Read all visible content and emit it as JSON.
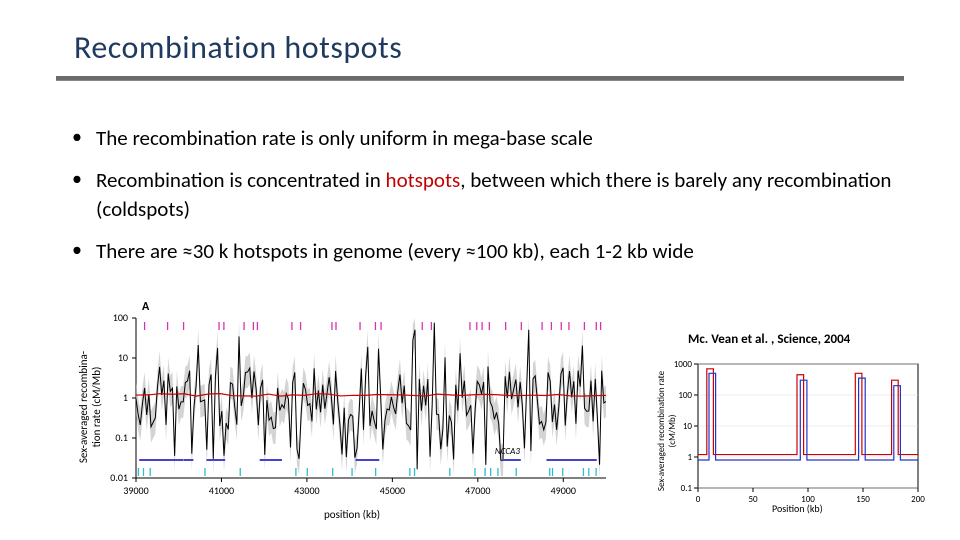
{
  "title": "Recombination hotspots",
  "bullets": {
    "b1": "The recombination rate is only uniform in mega-base scale",
    "b2_pre": "Recombination is concentrated in ",
    "b2_hot": "hotspots",
    "b2_post": ", between which there is barely any recombination (coldspots)",
    "b3": "There are ≈30 k hotspots in genome (every ≈100 kb), each 1-2 kb wide"
  },
  "citation": "Mc. Vean et al. , Science, 2004",
  "chart1": {
    "type": "line-log",
    "panel_label": "A",
    "ylabel": "Sex-averaged recombina-\ntion rate (cM/Mb)",
    "xlabel": "position (kb)",
    "xlim": [
      39000,
      50000
    ],
    "ylim_log": [
      0.01,
      100
    ],
    "yticks": [
      0.01,
      0.1,
      1,
      10,
      100
    ],
    "ytick_labels": [
      "0.01",
      "0.1",
      "1",
      "10",
      "100"
    ],
    "xticks": [
      39000,
      41000,
      43000,
      45000,
      47000,
      49000
    ],
    "series_red_y": 1.2,
    "line_black_color": "#000000",
    "line_red_color": "#cc0000",
    "band_gray_color": "#b8b8b8",
    "tick_magenta_color": "#d633b3",
    "tick_cyan_color": "#33bbcc",
    "tick_blue_color": "#4444cc",
    "background_color": "#ffffff",
    "gene_label": "NCCA3",
    "font_size_axis": 11,
    "line_width": 1.0
  },
  "chart2": {
    "type": "line-log",
    "ylabel": "Sex-averaged recombination rate\n(cM/Mb)",
    "xlabel": "Position (kb)",
    "xlim": [
      0,
      200
    ],
    "ylim_log": [
      0.1,
      1000
    ],
    "yticks": [
      0.1,
      1,
      10,
      100,
      1000
    ],
    "ytick_labels": [
      "0.1",
      "1",
      "10",
      "100",
      "1000"
    ],
    "xticks": [
      0,
      50,
      100,
      150,
      200
    ],
    "line_blue_color": "#2233cc",
    "line_red_color": "#cc0000",
    "background_color": "#ffffff",
    "font_size_axis": 10,
    "line_width": 1.2
  },
  "colors": {
    "title": "#1f3a5f",
    "underline": "#6b6b6b",
    "text": "#000000",
    "hotspots": "#c00000"
  }
}
